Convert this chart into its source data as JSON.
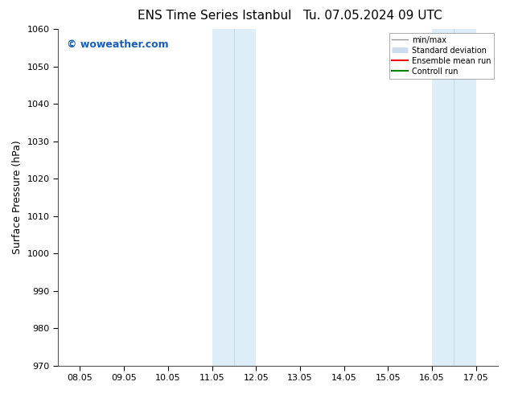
{
  "title": "ENS Time Series Istanbul",
  "title2": "Tu. 07.05.2024 09 UTC",
  "ylabel": "Surface Pressure (hPa)",
  "ylim": [
    970,
    1060
  ],
  "yticks": [
    970,
    980,
    990,
    1000,
    1010,
    1020,
    1030,
    1040,
    1050,
    1060
  ],
  "xtick_labels": [
    "08.05",
    "09.05",
    "10.05",
    "11.05",
    "12.05",
    "13.05",
    "14.05",
    "15.05",
    "16.05",
    "17.05"
  ],
  "shaded_regions": [
    {
      "xmin": 3,
      "xmax": 5,
      "color": "#ddeeff"
    },
    {
      "xmin": 8,
      "xmax": 10,
      "color": "#ddeeff"
    }
  ],
  "watermark": "© woweather.com",
  "watermark_color": "#1a5fb4",
  "legend_entries": [
    {
      "label": "min/max",
      "color": "#999999",
      "lw": 1.0
    },
    {
      "label": "Standard deviation",
      "color": "#ccddee",
      "lw": 5
    },
    {
      "label": "Ensemble mean run",
      "color": "red",
      "lw": 1.5
    },
    {
      "label": "Controll run",
      "color": "green",
      "lw": 1.5
    }
  ],
  "bg_color": "#ffffff",
  "title_fontsize": 11,
  "label_fontsize": 9,
  "tick_fontsize": 8
}
